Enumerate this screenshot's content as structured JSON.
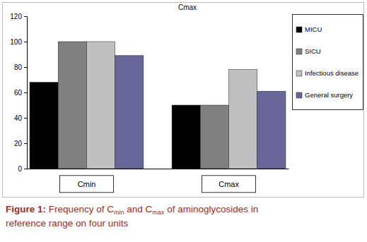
{
  "chart_data": {
    "type": "bar",
    "title": "Cmax",
    "categories": [
      "Cmin",
      "Cmax"
    ],
    "series": [
      {
        "name": "MICU",
        "color": "#000000",
        "values": [
          68,
          50
        ]
      },
      {
        "name": "SICU",
        "color": "#808080",
        "values": [
          100,
          50
        ]
      },
      {
        "name": "Infectious disease",
        "color": "#c0c0c0",
        "values": [
          100,
          78
        ]
      },
      {
        "name": "General surgery",
        "color": "#666699",
        "values": [
          89,
          61
        ]
      }
    ],
    "ylim": [
      0,
      120
    ],
    "yticks": [
      0,
      20,
      40,
      60,
      80,
      100,
      120
    ],
    "grid": false,
    "legend": "right"
  },
  "caption": [
    [
      {
        "text": "Figure 1:",
        "style": "bold"
      },
      {
        "text": " Frequency of C",
        "style": "normal"
      },
      {
        "text": "min",
        "style": "sub"
      },
      {
        "text": " and C",
        "style": "normal"
      },
      {
        "text": "max",
        "style": "sub"
      },
      {
        "text": " of aminoglycosides in",
        "style": "normal"
      }
    ],
    [
      {
        "text": "reference range on four units",
        "style": "normal"
      }
    ]
  ]
}
